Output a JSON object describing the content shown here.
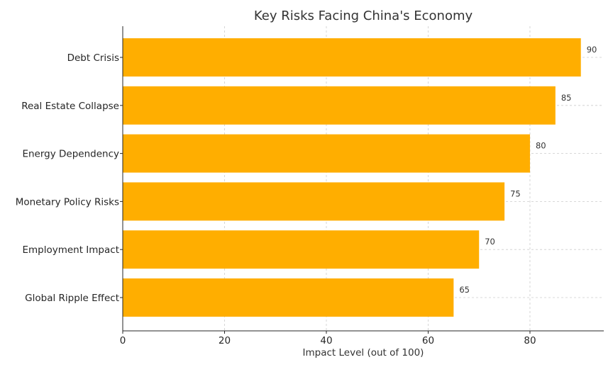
{
  "chart_data": {
    "type": "bar",
    "orientation": "horizontal",
    "title": "Key Risks Facing China's Economy",
    "xlabel": "Impact Level (out of 100)",
    "ylabel": "",
    "categories": [
      "Debt Crisis",
      "Real Estate Collapse",
      "Energy Dependency",
      "Monetary Policy Risks",
      "Employment Impact",
      "Global Ripple Effect"
    ],
    "values": [
      90,
      85,
      80,
      75,
      70,
      65
    ],
    "xlim": [
      0,
      94.5
    ],
    "xticks": [
      0,
      20,
      40,
      60,
      80
    ],
    "grid": true,
    "bar_color": "#FFAE00"
  }
}
